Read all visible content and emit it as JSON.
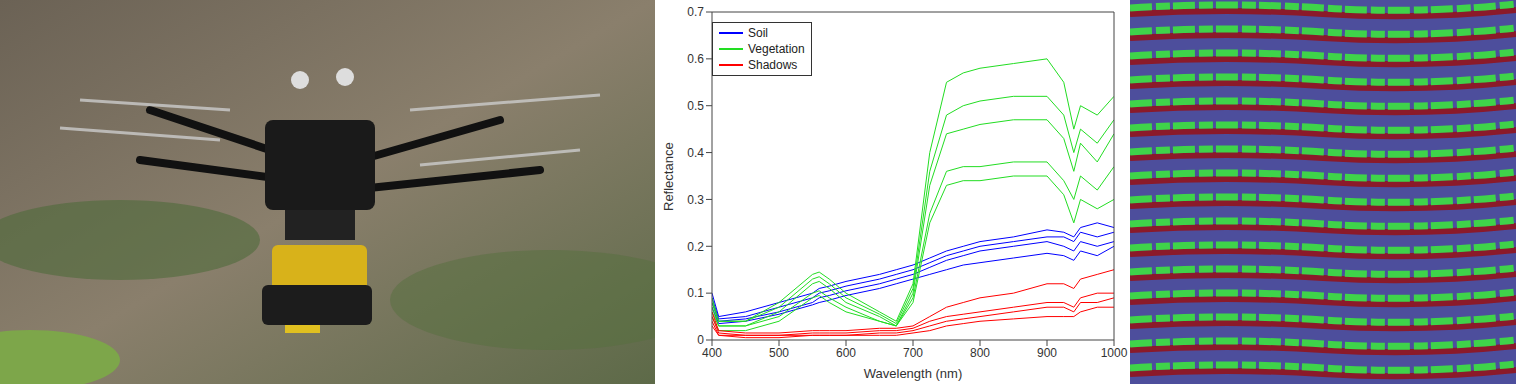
{
  "chart_data": {
    "type": "line",
    "xlabel": "Wavelength (nm)",
    "ylabel": "Reflectance",
    "xlim": [
      400,
      1000
    ],
    "ylim": [
      0,
      0.7
    ],
    "xticks": [
      400,
      500,
      600,
      700,
      800,
      900,
      1000
    ],
    "yticks": [
      0,
      0.1,
      0.2,
      0.3,
      0.4,
      0.5,
      0.6,
      0.7
    ],
    "legend": "upper left",
    "x": [
      400,
      410,
      450,
      500,
      550,
      560,
      575,
      600,
      650,
      675,
      700,
      725,
      750,
      775,
      800,
      850,
      900,
      925,
      940,
      950,
      975,
      1000
    ],
    "series": [
      {
        "name": "Soil",
        "color": "#0000ff",
        "values": [
          [
            0.1,
            0.05,
            0.06,
            0.08,
            0.1,
            0.11,
            0.115,
            0.125,
            0.14,
            0.15,
            0.16,
            0.175,
            0.19,
            0.2,
            0.21,
            0.22,
            0.235,
            0.23,
            0.22,
            0.24,
            0.25,
            0.24
          ],
          [
            0.09,
            0.045,
            0.05,
            0.07,
            0.09,
            0.1,
            0.105,
            0.115,
            0.13,
            0.14,
            0.15,
            0.165,
            0.18,
            0.19,
            0.2,
            0.21,
            0.22,
            0.22,
            0.21,
            0.23,
            0.22,
            0.23
          ],
          [
            0.08,
            0.04,
            0.045,
            0.06,
            0.08,
            0.09,
            0.095,
            0.105,
            0.12,
            0.13,
            0.14,
            0.155,
            0.17,
            0.18,
            0.19,
            0.2,
            0.21,
            0.2,
            0.19,
            0.21,
            0.2,
            0.21
          ],
          [
            0.07,
            0.035,
            0.04,
            0.055,
            0.075,
            0.08,
            0.085,
            0.095,
            0.11,
            0.12,
            0.13,
            0.14,
            0.15,
            0.16,
            0.165,
            0.175,
            0.185,
            0.18,
            0.17,
            0.19,
            0.18,
            0.2
          ]
        ]
      },
      {
        "name": "Vegetation",
        "color": "#22dd22",
        "values": [
          [
            0.09,
            0.04,
            0.04,
            0.08,
            0.14,
            0.145,
            0.13,
            0.1,
            0.06,
            0.04,
            0.12,
            0.4,
            0.55,
            0.57,
            0.58,
            0.59,
            0.6,
            0.55,
            0.45,
            0.5,
            0.48,
            0.52
          ],
          [
            0.08,
            0.04,
            0.04,
            0.07,
            0.13,
            0.135,
            0.12,
            0.09,
            0.055,
            0.035,
            0.11,
            0.36,
            0.48,
            0.5,
            0.51,
            0.52,
            0.52,
            0.48,
            0.4,
            0.45,
            0.42,
            0.47
          ],
          [
            0.07,
            0.03,
            0.03,
            0.06,
            0.12,
            0.125,
            0.11,
            0.08,
            0.05,
            0.03,
            0.1,
            0.33,
            0.44,
            0.45,
            0.46,
            0.47,
            0.47,
            0.43,
            0.36,
            0.42,
            0.38,
            0.44
          ],
          [
            0.06,
            0.03,
            0.03,
            0.05,
            0.1,
            0.105,
            0.09,
            0.07,
            0.04,
            0.03,
            0.09,
            0.27,
            0.36,
            0.37,
            0.37,
            0.38,
            0.38,
            0.34,
            0.3,
            0.35,
            0.32,
            0.37
          ],
          [
            0.05,
            0.02,
            0.02,
            0.04,
            0.09,
            0.095,
            0.08,
            0.06,
            0.04,
            0.03,
            0.08,
            0.25,
            0.33,
            0.34,
            0.34,
            0.35,
            0.35,
            0.31,
            0.25,
            0.3,
            0.28,
            0.3
          ]
        ]
      },
      {
        "name": "Shadows",
        "color": "#ff0000",
        "values": [
          [
            0.06,
            0.02,
            0.015,
            0.015,
            0.02,
            0.02,
            0.02,
            0.02,
            0.025,
            0.025,
            0.03,
            0.05,
            0.07,
            0.08,
            0.09,
            0.1,
            0.12,
            0.12,
            0.11,
            0.13,
            0.14,
            0.15
          ],
          [
            0.05,
            0.015,
            0.01,
            0.01,
            0.015,
            0.015,
            0.015,
            0.015,
            0.02,
            0.02,
            0.025,
            0.04,
            0.05,
            0.055,
            0.06,
            0.07,
            0.08,
            0.08,
            0.07,
            0.09,
            0.1,
            0.1
          ],
          [
            0.04,
            0.01,
            0.01,
            0.01,
            0.01,
            0.01,
            0.01,
            0.01,
            0.015,
            0.015,
            0.02,
            0.03,
            0.04,
            0.045,
            0.05,
            0.06,
            0.07,
            0.07,
            0.06,
            0.08,
            0.08,
            0.09
          ],
          [
            0.03,
            0.01,
            0.005,
            0.005,
            0.01,
            0.01,
            0.01,
            0.01,
            0.01,
            0.01,
            0.015,
            0.02,
            0.03,
            0.035,
            0.04,
            0.045,
            0.05,
            0.05,
            0.05,
            0.06,
            0.07,
            0.07
          ]
        ]
      }
    ]
  }
}
